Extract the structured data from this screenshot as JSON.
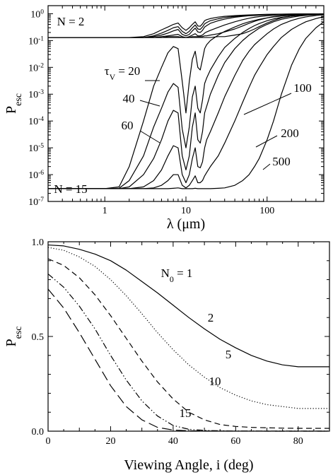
{
  "chart_data": [
    {
      "type": "line",
      "xscale": "log",
      "yscale": "log",
      "xlim": [
        0.2,
        500
      ],
      "ylim": [
        1e-07,
        2
      ],
      "xlabel": "λ (μm)",
      "ylabel": "P",
      "ylabel_sub": "esc",
      "xtick_labels": [
        "1",
        "10",
        "100"
      ],
      "ytick_labels": [
        {
          "base": "10",
          "exp": "-7"
        },
        {
          "base": "10",
          "exp": "-6"
        },
        {
          "base": "10",
          "exp": "-5"
        },
        {
          "base": "10",
          "exp": "-4"
        },
        {
          "base": "10",
          "exp": "-3"
        },
        {
          "base": "10",
          "exp": "-2"
        },
        {
          "base": "10",
          "exp": "-1"
        },
        {
          "base": "10",
          "exp": "0"
        }
      ],
      "annotations": {
        "n_top": "N =  2",
        "n_bottom": "N = 15",
        "tau_symbol": "τ",
        "tau_sub": "V",
        "tau_eq": " = 20",
        "tau_40": "40",
        "tau_60": "60",
        "tau_100": "100",
        "tau_200": "200",
        "tau_500": "500"
      },
      "x": [
        0.2,
        1,
        1.5,
        2,
        3,
        4,
        5,
        6,
        7,
        8,
        9,
        10,
        11,
        12,
        13,
        14,
        15,
        16,
        17,
        18,
        20,
        25,
        30,
        40,
        50,
        60,
        70,
        80,
        100,
        120,
        150,
        200,
        250,
        300,
        400,
        500
      ],
      "series_groups": [
        {
          "group": "N = 2",
          "series": [
            {
              "values": [
                0.13,
                0.13,
                0.13,
                0.13,
                0.14,
                0.18,
                0.25,
                0.32,
                0.4,
                0.45,
                0.3,
                0.24,
                0.3,
                0.4,
                0.5,
                0.35,
                0.34,
                0.42,
                0.55,
                0.6,
                0.66,
                0.75,
                0.8,
                0.85,
                0.88,
                0.9,
                0.92,
                0.93,
                0.95,
                0.96,
                0.97,
                0.98,
                0.98,
                0.99,
                0.99,
                0.99
              ]
            },
            {
              "values": [
                0.13,
                0.13,
                0.13,
                0.13,
                0.13,
                0.15,
                0.19,
                0.24,
                0.3,
                0.33,
                0.22,
                0.18,
                0.22,
                0.3,
                0.38,
                0.27,
                0.26,
                0.32,
                0.42,
                0.47,
                0.55,
                0.65,
                0.72,
                0.8,
                0.84,
                0.87,
                0.89,
                0.91,
                0.93,
                0.95,
                0.96,
                0.97,
                0.98,
                0.98,
                0.99,
                0.99
              ]
            },
            {
              "values": [
                0.13,
                0.13,
                0.13,
                0.13,
                0.13,
                0.14,
                0.16,
                0.19,
                0.23,
                0.26,
                0.17,
                0.15,
                0.17,
                0.23,
                0.29,
                0.21,
                0.2,
                0.24,
                0.32,
                0.36,
                0.44,
                0.55,
                0.63,
                0.74,
                0.8,
                0.84,
                0.86,
                0.88,
                0.91,
                0.93,
                0.95,
                0.96,
                0.97,
                0.98,
                0.99,
                0.99
              ]
            },
            {
              "values": [
                0.13,
                0.13,
                0.13,
                0.13,
                0.13,
                0.13,
                0.14,
                0.15,
                0.16,
                0.17,
                0.14,
                0.13,
                0.14,
                0.16,
                0.18,
                0.15,
                0.15,
                0.16,
                0.19,
                0.21,
                0.24,
                0.31,
                0.38,
                0.5,
                0.6,
                0.68,
                0.74,
                0.78,
                0.84,
                0.88,
                0.92,
                0.95,
                0.96,
                0.97,
                0.98,
                0.99
              ]
            },
            {
              "values": [
                0.13,
                0.13,
                0.13,
                0.13,
                0.13,
                0.13,
                0.13,
                0.14,
                0.14,
                0.14,
                0.13,
                0.13,
                0.13,
                0.14,
                0.14,
                0.14,
                0.14,
                0.14,
                0.15,
                0.15,
                0.16,
                0.18,
                0.21,
                0.27,
                0.35,
                0.44,
                0.52,
                0.59,
                0.7,
                0.78,
                0.85,
                0.91,
                0.94,
                0.96,
                0.98,
                0.99
              ]
            },
            {
              "values": [
                0.13,
                0.13,
                0.13,
                0.13,
                0.13,
                0.13,
                0.13,
                0.13,
                0.13,
                0.13,
                0.13,
                0.13,
                0.13,
                0.13,
                0.13,
                0.13,
                0.13,
                0.13,
                0.13,
                0.13,
                0.13,
                0.14,
                0.14,
                0.16,
                0.18,
                0.22,
                0.27,
                0.33,
                0.45,
                0.56,
                0.7,
                0.82,
                0.9,
                0.94,
                0.97,
                0.99
              ]
            }
          ]
        },
        {
          "group": "N = 15",
          "series": [
            {
              "name": "τV = 20",
              "values": [
                3e-07,
                3e-07,
                3.5e-07,
                2e-06,
                0.0001,
                0.002,
                0.01,
                0.035,
                0.06,
                0.05,
                0.003,
                0.0002,
                0.003,
                0.02,
                0.04,
                0.01,
                0.008,
                0.02,
                0.05,
                0.07,
                0.1,
                0.16,
                0.22,
                0.32,
                0.42,
                0.5,
                0.56,
                0.62,
                0.7,
                0.76,
                0.82,
                0.88,
                0.91,
                0.93,
                0.96,
                0.98
              ]
            },
            {
              "name": "τV = 40",
              "values": [
                3e-07,
                3e-07,
                3.1e-07,
                6e-07,
                5e-06,
                6e-05,
                0.0003,
                0.0012,
                0.0025,
                0.0018,
                5e-05,
                1e-05,
                6e-05,
                0.0008,
                0.002,
                0.0003,
                0.0002,
                0.0006,
                0.0025,
                0.004,
                0.008,
                0.025,
                0.055,
                0.12,
                0.2,
                0.28,
                0.36,
                0.43,
                0.55,
                0.64,
                0.73,
                0.82,
                0.87,
                0.9,
                0.94,
                0.97
              ]
            },
            {
              "name": "τV = 60",
              "values": [
                3e-07,
                3e-07,
                3e-07,
                3.5e-07,
                1e-06,
                4e-06,
                2e-05,
                0.0001,
                0.00025,
                0.0002,
                5e-06,
                1.5e-06,
                5e-06,
                6e-05,
                0.0002,
                2e-05,
                1.5e-05,
                4e-05,
                0.0002,
                0.00035,
                0.001,
                0.005,
                0.015,
                0.05,
                0.1,
                0.16,
                0.22,
                0.29,
                0.4,
                0.5,
                0.62,
                0.74,
                0.82,
                0.87,
                0.92,
                0.96
              ]
            },
            {
              "name": "τV = 100",
              "values": [
                3e-07,
                3e-07,
                3e-07,
                3e-07,
                3.5e-07,
                6e-07,
                1.5e-06,
                5e-06,
                1.2e-05,
                1e-05,
                1e-06,
                5e-07,
                1e-06,
                4e-06,
                1e-05,
                2e-06,
                1.8e-06,
                3e-06,
                1e-05,
                2e-05,
                4e-05,
                0.0002,
                0.0008,
                0.005,
                0.018,
                0.04,
                0.07,
                0.1,
                0.18,
                0.27,
                0.4,
                0.56,
                0.68,
                0.76,
                0.86,
                0.92
              ]
            },
            {
              "name": "τV = 200",
              "values": [
                3e-07,
                3e-07,
                3e-07,
                3e-07,
                3e-07,
                3.2e-07,
                4e-07,
                6e-07,
                1e-06,
                1e-06,
                4e-07,
                3.2e-07,
                4e-07,
                6e-07,
                9e-07,
                5e-07,
                5e-07,
                6e-07,
                9e-07,
                1.2e-06,
                2e-06,
                5e-06,
                1.5e-05,
                0.0001,
                0.0005,
                0.0018,
                0.005,
                0.01,
                0.03,
                0.06,
                0.13,
                0.26,
                0.38,
                0.5,
                0.66,
                0.78
              ]
            },
            {
              "name": "τV = 500",
              "values": [
                3e-07,
                3e-07,
                3e-07,
                3e-07,
                3e-07,
                3e-07,
                3e-07,
                3e-07,
                3.1e-07,
                3.2e-07,
                3e-07,
                3e-07,
                3e-07,
                3e-07,
                3.1e-07,
                3e-07,
                3e-07,
                3e-07,
                3e-07,
                3e-07,
                3e-07,
                3.1e-07,
                3.2e-07,
                4e-07,
                6e-07,
                1e-06,
                2e-06,
                4e-06,
                2e-05,
                0.0001,
                0.001,
                0.012,
                0.05,
                0.12,
                0.3,
                0.5
              ]
            }
          ]
        }
      ]
    },
    {
      "type": "line",
      "xlim": [
        0,
        90
      ],
      "ylim": [
        0,
        1
      ],
      "xlabel": "Viewing Angle, i (deg)",
      "ylabel": "P",
      "ylabel_sub": "esc",
      "xtick_labels": [
        "0",
        "20",
        "40",
        "60",
        "80"
      ],
      "ytick_labels": [
        "0.0",
        "0.5",
        "1.0"
      ],
      "x": [
        0,
        5,
        10,
        15,
        20,
        25,
        30,
        35,
        40,
        45,
        50,
        55,
        60,
        65,
        70,
        75,
        80,
        85,
        90
      ],
      "series": [
        {
          "name": "N0 = 1",
          "label_prefix": "N",
          "label_sub": "0",
          "label_suffix": " = 1",
          "line_style": "solid",
          "values": [
            0.983,
            0.978,
            0.96,
            0.935,
            0.9,
            0.85,
            0.79,
            0.73,
            0.665,
            0.6,
            0.54,
            0.485,
            0.44,
            0.4,
            0.37,
            0.35,
            0.34,
            0.34,
            0.34
          ]
        },
        {
          "name": "2",
          "label_prefix": "2",
          "line_style": "dotted",
          "values": [
            0.97,
            0.955,
            0.92,
            0.87,
            0.8,
            0.715,
            0.62,
            0.52,
            0.43,
            0.35,
            0.285,
            0.23,
            0.19,
            0.16,
            0.14,
            0.13,
            0.12,
            0.12,
            0.12
          ]
        },
        {
          "name": "5",
          "label_prefix": "5",
          "line_style": "dashed",
          "values": [
            0.91,
            0.875,
            0.81,
            0.72,
            0.61,
            0.49,
            0.37,
            0.26,
            0.17,
            0.1,
            0.06,
            0.035,
            0.025,
            0.02,
            0.018,
            0.016,
            0.015,
            0.015,
            0.015
          ]
        },
        {
          "name": "10",
          "label_prefix": "10",
          "line_style": "dash-dot-dot",
          "values": [
            0.83,
            0.76,
            0.66,
            0.54,
            0.4,
            0.27,
            0.16,
            0.08,
            0.03,
            0.01,
            0.004,
            0.002,
            0.001,
            0.001,
            0.0005,
            0.0005,
            0.0005,
            0.0005,
            0.0005
          ]
        },
        {
          "name": "15",
          "label_prefix": "15",
          "line_style": "long-dash",
          "values": [
            0.75,
            0.65,
            0.52,
            0.38,
            0.24,
            0.13,
            0.06,
            0.02,
            0.006,
            0.002,
            0.001,
            0.0005,
            0.0003,
            0.0002,
            0.0001,
            0.0001,
            0.0001,
            0.0001,
            0.0001
          ]
        }
      ]
    }
  ]
}
